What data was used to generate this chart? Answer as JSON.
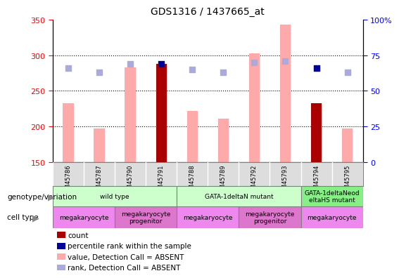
{
  "title": "GDS1316 / 1437665_at",
  "samples": [
    "GSM45786",
    "GSM45787",
    "GSM45790",
    "GSM45791",
    "GSM45788",
    "GSM45789",
    "GSM45792",
    "GSM45793",
    "GSM45794",
    "GSM45795"
  ],
  "bar_values": [
    233,
    197,
    283,
    288,
    222,
    211,
    303,
    343,
    233,
    197
  ],
  "rank_dots": [
    66,
    63,
    69,
    69,
    65,
    63,
    70,
    71,
    66,
    63
  ],
  "red_bar_indices": [
    3,
    8
  ],
  "ylim_left": [
    150,
    350
  ],
  "ylim_right": [
    0,
    100
  ],
  "yticks_left": [
    150,
    200,
    250,
    300,
    350
  ],
  "yticks_right": [
    0,
    25,
    50,
    75,
    100
  ],
  "color_red": "#aa0000",
  "color_pink": "#ffaaaa",
  "color_blue_dark": "#000099",
  "color_blue_light": "#aaaadd",
  "bar_width": 0.35,
  "geno_defs": [
    {
      "start": 0,
      "end": 3,
      "label": "wild type",
      "color": "#ccffcc"
    },
    {
      "start": 4,
      "end": 7,
      "label": "GATA-1deltaN mutant",
      "color": "#ccffcc"
    },
    {
      "start": 8,
      "end": 9,
      "label": "GATA-1deltaNeod\neltaHS mutant",
      "color": "#88ee88"
    }
  ],
  "cell_defs": [
    {
      "start": 0,
      "end": 1,
      "label": "megakaryocyte",
      "color": "#ee88ee"
    },
    {
      "start": 2,
      "end": 3,
      "label": "megakaryocyte\nprogenitor",
      "color": "#dd77cc"
    },
    {
      "start": 4,
      "end": 5,
      "label": "megakaryocyte",
      "color": "#ee88ee"
    },
    {
      "start": 6,
      "end": 7,
      "label": "megakaryocyte\nprogenitor",
      "color": "#dd77cc"
    },
    {
      "start": 8,
      "end": 9,
      "label": "megakaryocyte",
      "color": "#ee88ee"
    }
  ],
  "legend_labels": [
    "count",
    "percentile rank within the sample",
    "value, Detection Call = ABSENT",
    "rank, Detection Call = ABSENT"
  ],
  "legend_colors": [
    "#aa0000",
    "#000099",
    "#ffaaaa",
    "#aaaadd"
  ]
}
